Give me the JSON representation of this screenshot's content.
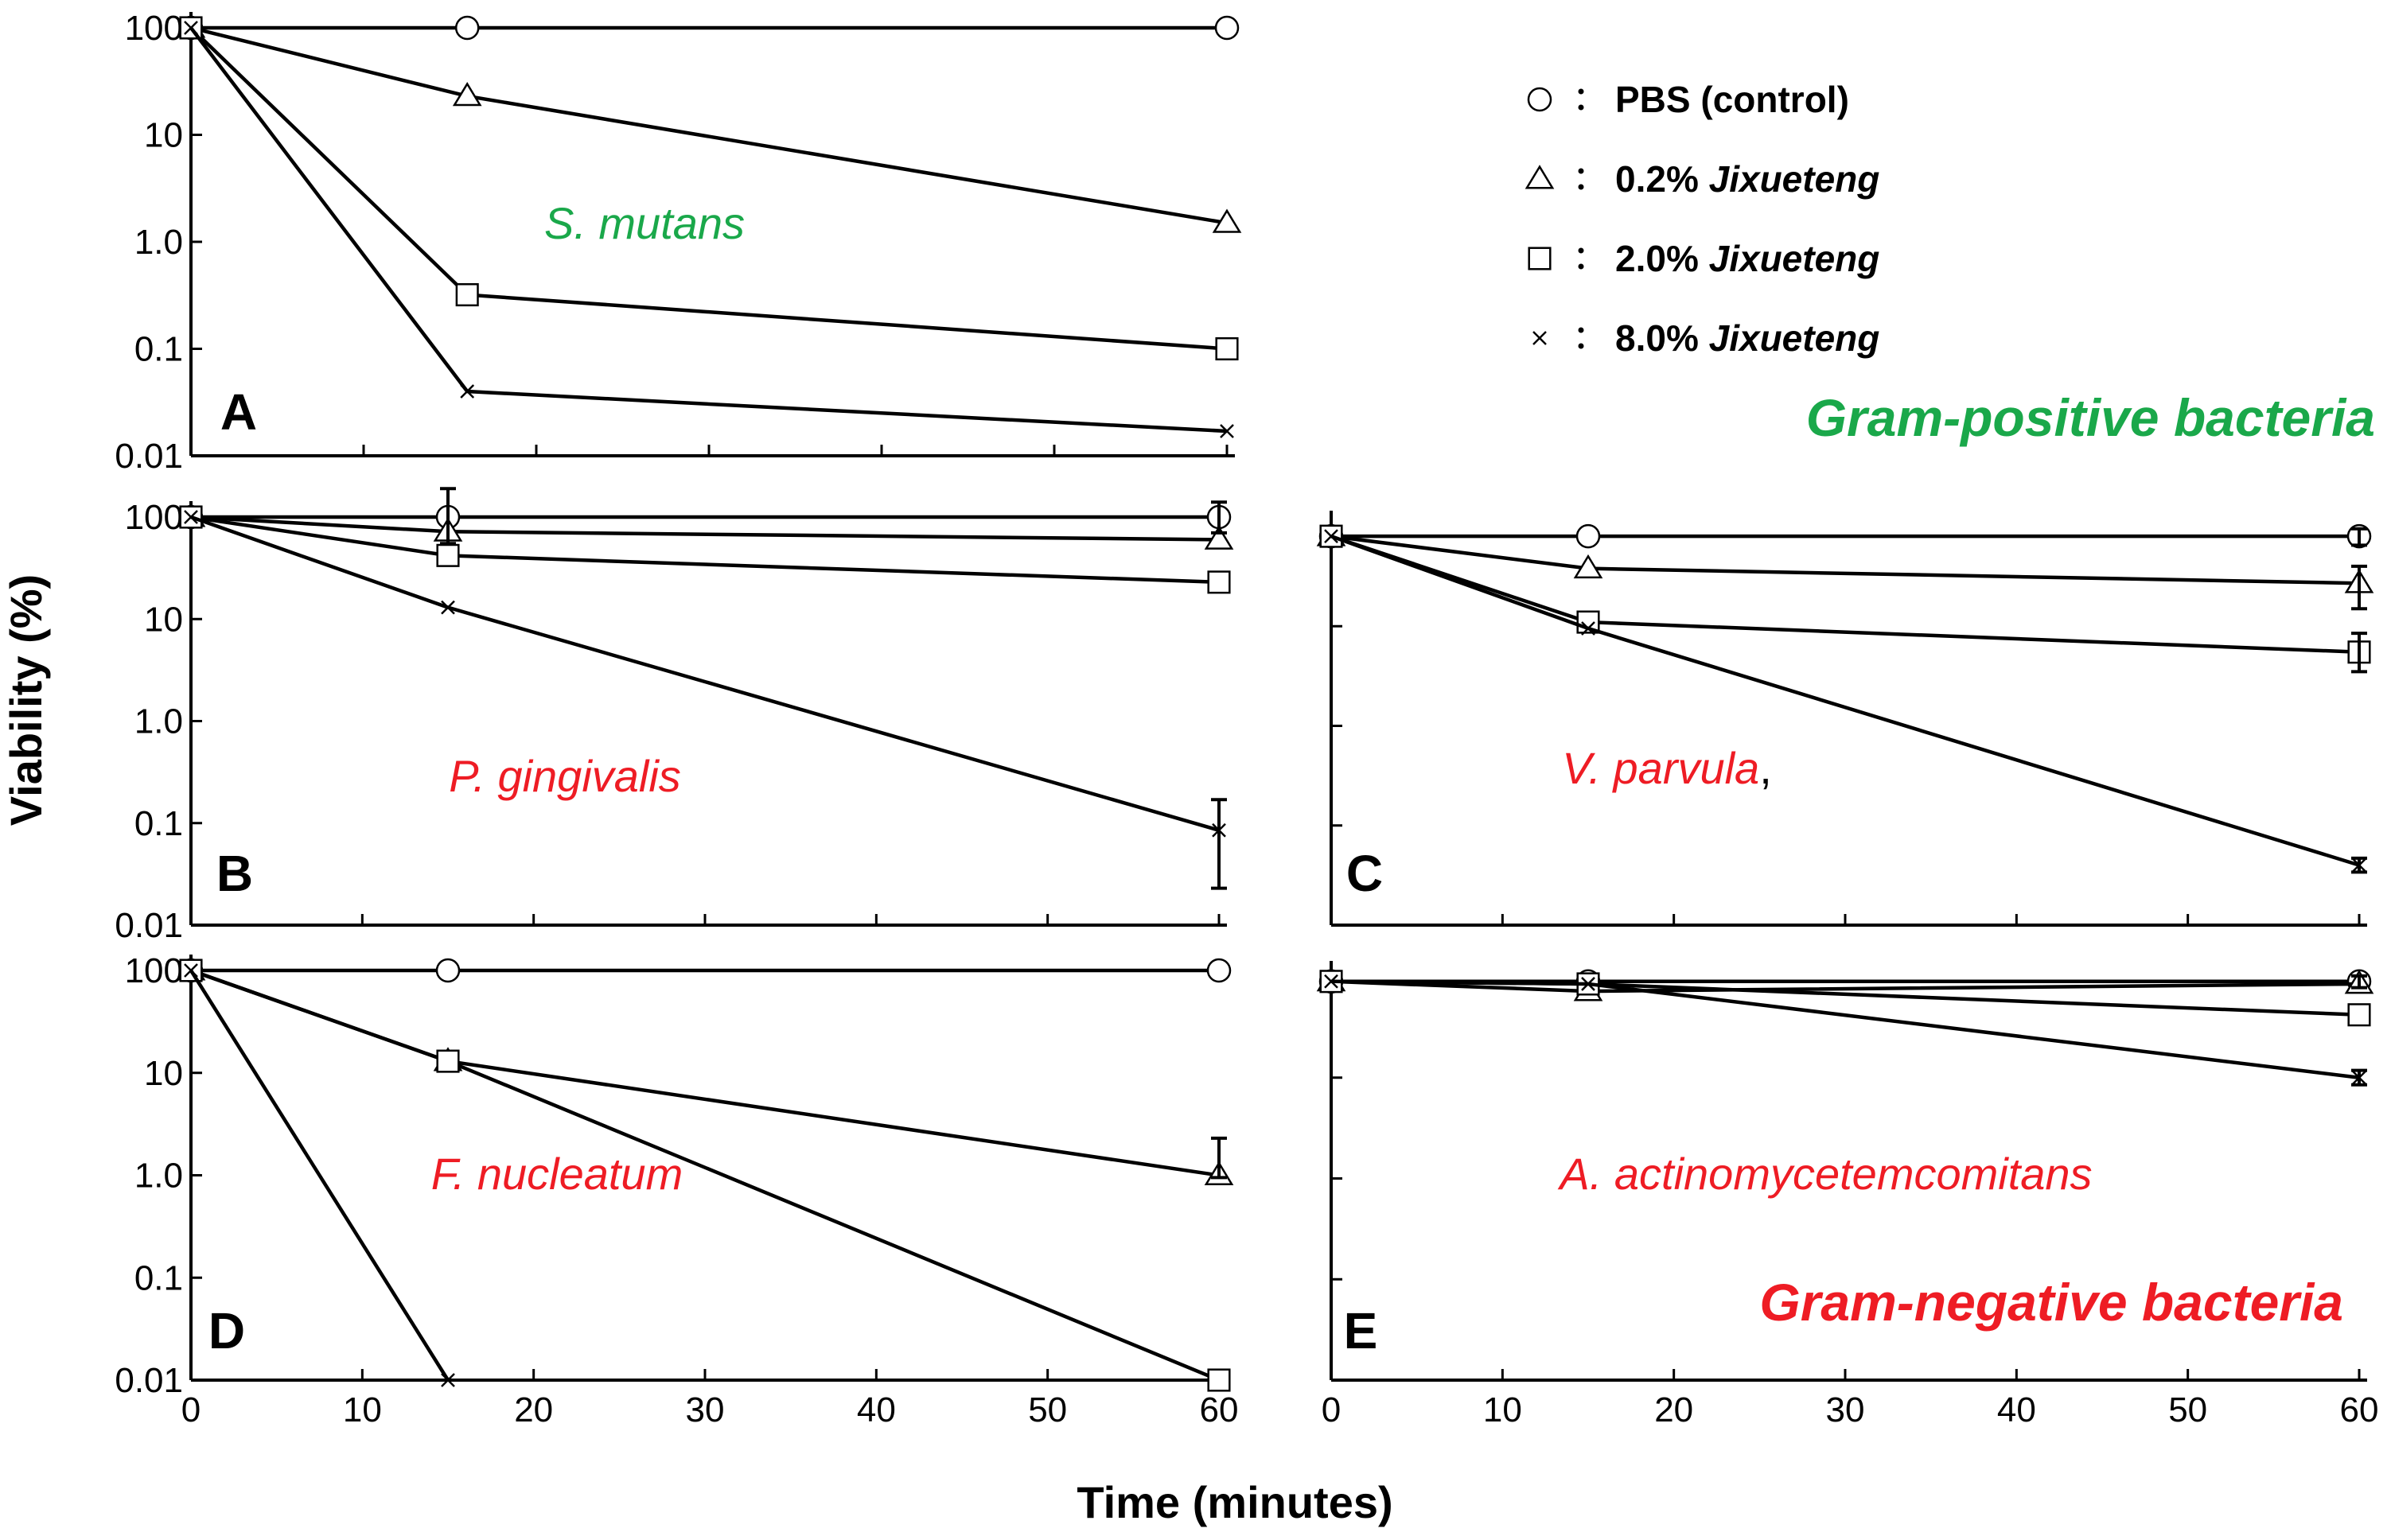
{
  "figure": {
    "xlabel": "Time (minutes)",
    "ylabel": "Viability (%)",
    "gram_positive_label": "Gram-positive bacteria",
    "gram_negative_label": "Gram-negative bacteria",
    "colors": {
      "gram_positive": "#1aa84a",
      "gram_negative": "#ee1c24",
      "line": "#000000"
    },
    "legend": [
      {
        "marker": "circle",
        "prefix": "PBS",
        "suffix": "(control)"
      },
      {
        "marker": "triangle",
        "prefix": "0.2%",
        "suffix": "Jixueteng"
      },
      {
        "marker": "square",
        "prefix": "2.0%",
        "suffix": "Jixueteng"
      },
      {
        "marker": "cross",
        "prefix": "8.0%",
        "suffix": "Jixueteng"
      }
    ]
  },
  "chart_data": [
    {
      "id": "A",
      "type": "line",
      "yscale": "log",
      "title": "S. mutans",
      "title_suffix": "",
      "title_color": "#1aa84a",
      "ylim": [
        0.01,
        100
      ],
      "xlim": [
        0,
        60
      ],
      "yticks": [
        "100",
        "10",
        "1.0",
        "0.1",
        "0.01"
      ],
      "show_xticklabels": false,
      "show_yticklabels": true,
      "series": [
        {
          "name": "PBS (control)",
          "marker": "circle",
          "x": [
            0,
            16,
            60
          ],
          "y": [
            100,
            100,
            100
          ]
        },
        {
          "name": "0.2% Jixueteng",
          "marker": "triangle",
          "x": [
            0,
            16,
            60
          ],
          "y": [
            100,
            23,
            1.5
          ]
        },
        {
          "name": "2.0% Jixueteng",
          "marker": "square",
          "x": [
            0,
            16,
            60
          ],
          "y": [
            100,
            0.32,
            0.1
          ]
        },
        {
          "name": "8.0% Jixueteng",
          "marker": "cross",
          "x": [
            0,
            16,
            60
          ],
          "y": [
            100,
            0.04,
            0.017
          ]
        }
      ]
    },
    {
      "id": "B",
      "type": "line",
      "yscale": "log",
      "title": "P. gingivalis",
      "title_suffix": "",
      "title_color": "#ee1c24",
      "ylim": [
        0.01,
        100
      ],
      "xlim": [
        0,
        60
      ],
      "yticks": [
        "100",
        "10",
        "1.0",
        "0.1",
        "0.01"
      ],
      "show_xticklabels": false,
      "show_yticklabels": true,
      "series": [
        {
          "name": "PBS (control)",
          "marker": "circle",
          "x": [
            0,
            15,
            60
          ],
          "y": [
            100,
            100,
            100
          ]
        },
        {
          "name": "0.2% Jixueteng",
          "marker": "triangle",
          "x": [
            0,
            15,
            60
          ],
          "y": [
            100,
            72,
            60
          ]
        },
        {
          "name": "2.0% Jixueteng",
          "marker": "square",
          "x": [
            0,
            15,
            60
          ],
          "y": [
            100,
            42,
            23
          ]
        },
        {
          "name": "8.0% Jixueteng",
          "marker": "cross",
          "x": [
            0,
            15,
            60
          ],
          "y": [
            100,
            13,
            0.085
          ]
        }
      ],
      "error_bars": [
        {
          "x": 15,
          "y": 100,
          "low": 55,
          "high": 190
        },
        {
          "x": 60,
          "y": 100,
          "low": 70,
          "high": 140
        },
        {
          "x": 60,
          "y": 0.085,
          "low": 0.023,
          "high": 0.17
        }
      ]
    },
    {
      "id": "C",
      "type": "line",
      "yscale": "log",
      "title": "V. parvula",
      "title_suffix": ",",
      "title_color": "#ee1c24",
      "ylim": [
        0.01,
        100
      ],
      "xlim": [
        0,
        60
      ],
      "yticks": [],
      "show_xticklabels": false,
      "show_yticklabels": false,
      "series": [
        {
          "name": "PBS (control)",
          "marker": "circle",
          "x": [
            0,
            15,
            60
          ],
          "y": [
            80,
            80,
            80
          ]
        },
        {
          "name": "0.2% Jixueteng",
          "marker": "triangle",
          "x": [
            0,
            15,
            60
          ],
          "y": [
            80,
            38,
            27
          ]
        },
        {
          "name": "2.0% Jixueteng",
          "marker": "square",
          "x": [
            0,
            15,
            60
          ],
          "y": [
            80,
            11,
            5.5
          ]
        },
        {
          "name": "8.0% Jixueteng",
          "marker": "cross",
          "x": [
            0,
            15,
            60
          ],
          "y": [
            80,
            9.5,
            0.04
          ]
        }
      ],
      "error_bars": [
        {
          "x": 60,
          "y": 80,
          "low": 65,
          "high": 95
        },
        {
          "x": 60,
          "y": 27,
          "low": 15,
          "high": 40
        },
        {
          "x": 60,
          "y": 5.5,
          "low": 3.5,
          "high": 8.5
        },
        {
          "x": 60,
          "y": 0.04,
          "low": 0.034,
          "high": 0.047
        }
      ]
    },
    {
      "id": "D",
      "type": "line",
      "yscale": "log",
      "title": "F. nucleatum",
      "title_suffix": "",
      "title_color": "#ee1c24",
      "ylim": [
        0.01,
        100
      ],
      "xlim": [
        0,
        60
      ],
      "yticks": [
        "100",
        "10",
        "1.0",
        "0.1",
        "0.01"
      ],
      "xticks": [
        "0",
        "10",
        "20",
        "30",
        "40",
        "50",
        "60"
      ],
      "show_xticklabels": true,
      "show_yticklabels": true,
      "series": [
        {
          "name": "PBS (control)",
          "marker": "circle",
          "x": [
            0,
            15,
            60
          ],
          "y": [
            100,
            100,
            100
          ]
        },
        {
          "name": "0.2% Jixueteng",
          "marker": "triangle",
          "x": [
            0,
            15,
            60
          ],
          "y": [
            100,
            13,
            1.0
          ]
        },
        {
          "name": "2.0% Jixueteng",
          "marker": "square",
          "x": [
            0,
            15,
            60
          ],
          "y": [
            100,
            13,
            0.01
          ]
        },
        {
          "name": "8.0% Jixueteng",
          "marker": "cross",
          "x": [
            0,
            15
          ],
          "y": [
            100,
            0.01
          ]
        }
      ],
      "error_bars": [
        {
          "x": 60,
          "y": 1.0,
          "low": 0.95,
          "high": 2.3
        }
      ]
    },
    {
      "id": "E",
      "type": "line",
      "yscale": "log",
      "title": "A. actinomycetemcomitans",
      "title_suffix": "",
      "title_color": "#ee1c24",
      "ylim": [
        0.01,
        100
      ],
      "xlim": [
        0,
        60
      ],
      "yticks": [],
      "xticks": [
        "0",
        "10",
        "20",
        "30",
        "40",
        "50",
        "60"
      ],
      "show_xticklabels": true,
      "show_yticklabels": false,
      "series": [
        {
          "name": "PBS (control)",
          "marker": "circle",
          "x": [
            0,
            15,
            60
          ],
          "y": [
            90,
            90,
            90
          ]
        },
        {
          "name": "0.2% Jixueteng",
          "marker": "triangle",
          "x": [
            0,
            15,
            60
          ],
          "y": [
            90,
            72,
            85
          ]
        },
        {
          "name": "2.0% Jixueteng",
          "marker": "square",
          "x": [
            0,
            15,
            60
          ],
          "y": [
            90,
            85,
            42
          ]
        },
        {
          "name": "8.0% Jixueteng",
          "marker": "cross",
          "x": [
            0,
            15,
            60
          ],
          "y": [
            90,
            85,
            10
          ]
        }
      ],
      "error_bars": [
        {
          "x": 60,
          "y": 90,
          "low": 78,
          "high": 102
        },
        {
          "x": 60,
          "y": 10,
          "low": 8.5,
          "high": 11.8
        }
      ]
    }
  ]
}
